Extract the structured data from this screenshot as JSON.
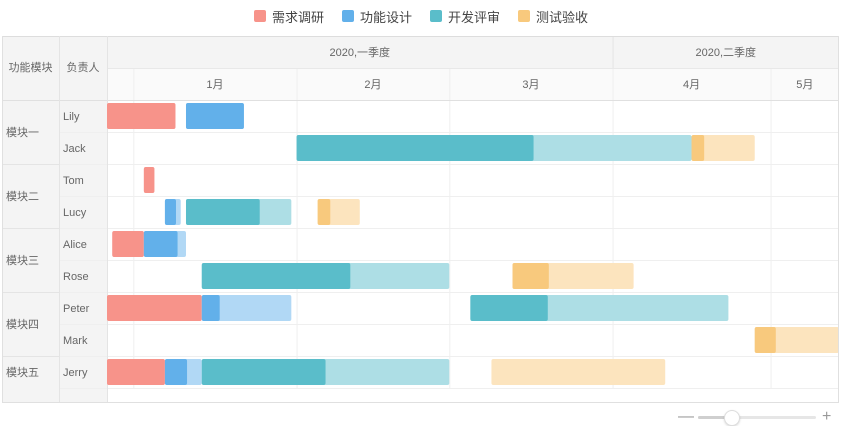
{
  "legend": [
    {
      "label": "需求调研",
      "color": "#f7938a"
    },
    {
      "label": "功能设计",
      "color": "#62b0ea"
    },
    {
      "label": "开发评审",
      "color": "#5abdca"
    },
    {
      "label": "测试验收",
      "color": "#f8c97d"
    }
  ],
  "chart_data": {
    "type": "gantt",
    "columns": [
      "功能模块",
      "负责人"
    ],
    "quarters": [
      "2020,一季度",
      "2020,二季度"
    ],
    "months": [
      "1月",
      "2月",
      "3月",
      "4月",
      "5月"
    ],
    "x_range": [
      "2019-12-27",
      "2020-05-14"
    ],
    "groups": [
      {
        "name": "模块一",
        "rows": [
          "Lily",
          "Jack"
        ]
      },
      {
        "name": "模块二",
        "rows": [
          "Tom",
          "Lucy"
        ]
      },
      {
        "name": "模块三",
        "rows": [
          "Alice",
          "Rose"
        ]
      },
      {
        "name": "模块四",
        "rows": [
          "Peter",
          "Mark"
        ]
      },
      {
        "name": "模块五",
        "rows": [
          "Jerry"
        ]
      }
    ],
    "tasks": [
      {
        "row": "Lily",
        "phase": "需求调研",
        "start": "2019-12-27",
        "end": "2020-01-09",
        "progress": 1.0
      },
      {
        "row": "Lily",
        "phase": "功能设计",
        "start": "2020-01-11",
        "end": "2020-01-22",
        "progress": 1.0
      },
      {
        "row": "Jack",
        "phase": "开发评审",
        "start": "2020-02-01",
        "end": "2020-04-16",
        "progress": 0.6
      },
      {
        "row": "Jack",
        "phase": "测试验收",
        "start": "2020-04-16",
        "end": "2020-04-28",
        "progress": 0.2
      },
      {
        "row": "Tom",
        "phase": "需求调研",
        "start": "2020-01-03",
        "end": "2020-01-05",
        "progress": 1.0
      },
      {
        "row": "Lucy",
        "phase": "功能设计",
        "start": "2020-01-07",
        "end": "2020-01-10",
        "progress": 0.7
      },
      {
        "row": "Lucy",
        "phase": "开发评审",
        "start": "2020-01-11",
        "end": "2020-01-31",
        "progress": 0.7
      },
      {
        "row": "Lucy",
        "phase": "测试验收",
        "start": "2020-02-05",
        "end": "2020-02-13",
        "progress": 0.3
      },
      {
        "row": "Alice",
        "phase": "需求调研",
        "start": "2019-12-28",
        "end": "2020-01-03",
        "progress": 1.0
      },
      {
        "row": "Alice",
        "phase": "功能设计",
        "start": "2020-01-03",
        "end": "2020-01-11",
        "progress": 0.8
      },
      {
        "row": "Rose",
        "phase": "开发评审",
        "start": "2020-01-14",
        "end": "2020-03-01",
        "progress": 0.6
      },
      {
        "row": "Rose",
        "phase": "测试验收",
        "start": "2020-03-13",
        "end": "2020-04-05",
        "progress": 0.3
      },
      {
        "row": "Peter",
        "phase": "需求调研",
        "start": "2019-12-27",
        "end": "2020-01-14",
        "progress": 1.0
      },
      {
        "row": "Peter",
        "phase": "功能设计",
        "start": "2020-01-14",
        "end": "2020-01-31",
        "progress": 0.2
      },
      {
        "row": "Peter",
        "phase": "开发评审",
        "start": "2020-03-05",
        "end": "2020-04-23",
        "progress": 0.3
      },
      {
        "row": "Mark",
        "phase": "测试验收",
        "start": "2020-04-28",
        "end": "2020-05-14",
        "progress": 0.25
      },
      {
        "row": "Jerry",
        "phase": "需求调研",
        "start": "2019-12-27",
        "end": "2020-01-07",
        "progress": 1.0
      },
      {
        "row": "Jerry",
        "phase": "功能设计",
        "start": "2020-01-07",
        "end": "2020-01-14",
        "progress": 0.6
      },
      {
        "row": "Jerry",
        "phase": "开发评审",
        "start": "2020-01-14",
        "end": "2020-03-01",
        "progress": 0.5
      },
      {
        "row": "Jerry",
        "phase": "测试验收",
        "start": "2020-03-09",
        "end": "2020-04-11",
        "progress": 0.0
      }
    ],
    "grid": true
  },
  "zoom": {
    "level": 0.28
  }
}
